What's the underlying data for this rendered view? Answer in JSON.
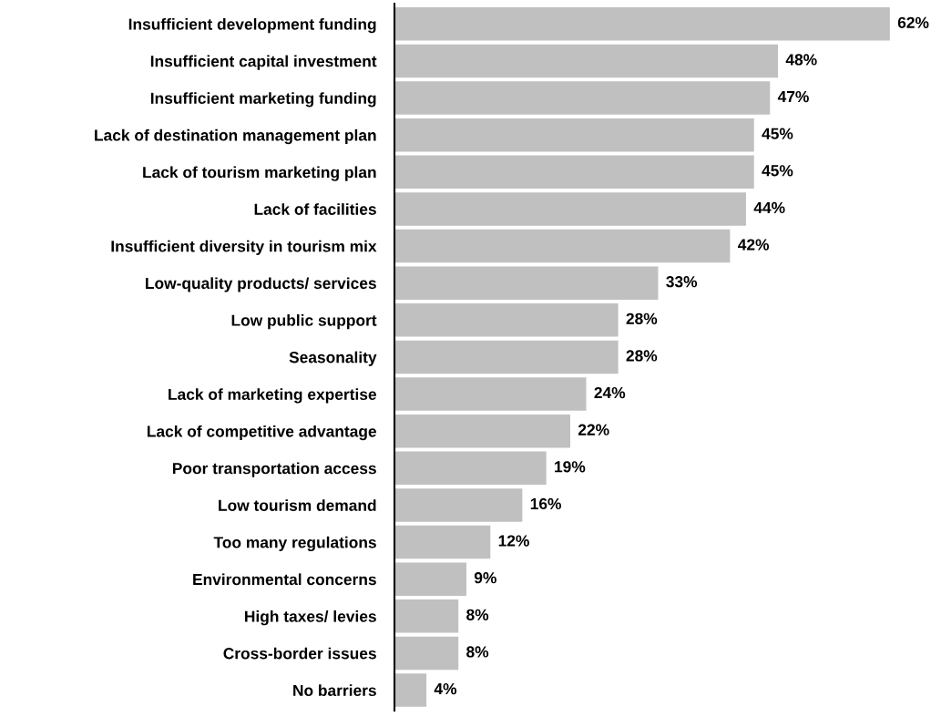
{
  "chart_data": {
    "type": "bar",
    "orientation": "horizontal",
    "categories": [
      "Insufficient development funding",
      "Insufficient capital investment",
      "Insufficient marketing funding",
      "Lack of destination management plan",
      "Lack of tourism marketing plan",
      "Lack of facilities",
      "Insufficient diversity in tourism mix",
      "Low-quality products/ services",
      "Low public support",
      "Seasonality",
      "Lack of marketing expertise",
      "Lack of competitive advantage",
      "Poor transportation access",
      "Low tourism demand",
      "Too many regulations",
      "Environmental concerns",
      "High taxes/ levies",
      "Cross-border issues",
      "No barriers"
    ],
    "values": [
      62,
      48,
      47,
      45,
      45,
      44,
      42,
      33,
      28,
      28,
      24,
      22,
      19,
      16,
      12,
      9,
      8,
      8,
      4
    ],
    "value_labels": [
      "62%",
      "48%",
      "47%",
      "45%",
      "45%",
      "44%",
      "42%",
      "33%",
      "28%",
      "28%",
      "24%",
      "22%",
      "19%",
      "16%",
      "12%",
      "9%",
      "8%",
      "8%",
      "4%"
    ],
    "color": "#c0c0c0",
    "grid": false,
    "legend": false,
    "tick_labels": "y"
  }
}
